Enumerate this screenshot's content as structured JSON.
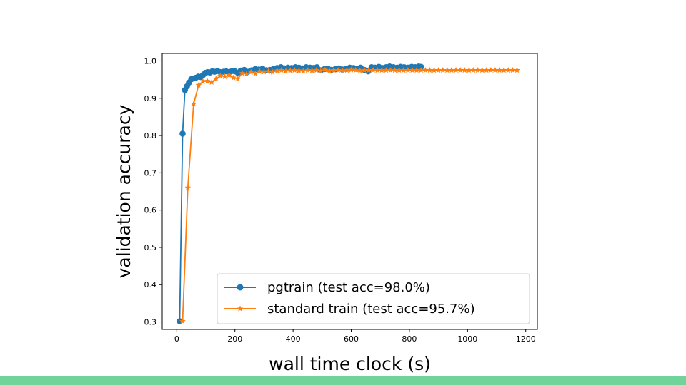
{
  "chart_data": {
    "type": "line",
    "title": "",
    "xlabel": "wall time clock (s)",
    "ylabel": "validation accuracy",
    "xlim": [
      -50,
      1240
    ],
    "ylim": [
      0.28,
      1.02
    ],
    "xticks": [
      0,
      200,
      400,
      600,
      800,
      1000,
      1200
    ],
    "yticks": [
      0.3,
      0.4,
      0.5,
      0.6,
      0.7,
      0.8,
      0.9,
      1.0
    ],
    "grid": false,
    "legend_position": "lower-right",
    "series": [
      {
        "name": "pgtrain (test acc=98.0%)",
        "color": "#1f77b4",
        "marker": "circle",
        "x": [
          10,
          20,
          28,
          35,
          42,
          50,
          58,
          66,
          74,
          82,
          90,
          98,
          106,
          114,
          122,
          130,
          140,
          150,
          160,
          170,
          180,
          190,
          200,
          210,
          220,
          232,
          245,
          258,
          270,
          282,
          295,
          308,
          320,
          332,
          345,
          358,
          370,
          382,
          395,
          408,
          420,
          432,
          445,
          458,
          470,
          482,
          495,
          508,
          520,
          532,
          545,
          558,
          570,
          582,
          595,
          608,
          620,
          632,
          645,
          658,
          670,
          682,
          695,
          708,
          720,
          732,
          745,
          758,
          770,
          782,
          795,
          808,
          820,
          832,
          840
        ],
        "y": [
          0.302,
          0.805,
          0.922,
          0.932,
          0.942,
          0.951,
          0.953,
          0.955,
          0.958,
          0.957,
          0.962,
          0.968,
          0.97,
          0.969,
          0.972,
          0.971,
          0.973,
          0.97,
          0.971,
          0.972,
          0.97,
          0.973,
          0.972,
          0.968,
          0.974,
          0.976,
          0.971,
          0.975,
          0.978,
          0.977,
          0.979,
          0.975,
          0.976,
          0.978,
          0.981,
          0.983,
          0.98,
          0.982,
          0.981,
          0.983,
          0.982,
          0.98,
          0.983,
          0.982,
          0.981,
          0.983,
          0.975,
          0.978,
          0.979,
          0.976,
          0.978,
          0.98,
          0.977,
          0.979,
          0.982,
          0.981,
          0.979,
          0.982,
          0.976,
          0.972,
          0.983,
          0.982,
          0.984,
          0.981,
          0.983,
          0.985,
          0.983,
          0.982,
          0.984,
          0.983,
          0.982,
          0.984,
          0.983,
          0.985,
          0.984
        ]
      },
      {
        "name": "standard train (test acc=95.7%)",
        "color": "#ff7f0e",
        "marker": "star",
        "x": [
          20,
          38,
          58,
          75,
          90,
          105,
          120,
          135,
          150,
          165,
          180,
          195,
          210,
          225,
          240,
          255,
          270,
          285,
          300,
          315,
          330,
          345,
          360,
          375,
          390,
          405,
          420,
          435,
          450,
          465,
          480,
          495,
          510,
          525,
          540,
          555,
          570,
          585,
          600,
          615,
          630,
          645,
          660,
          675,
          690,
          705,
          720,
          735,
          750,
          765,
          780,
          795,
          810,
          825,
          840,
          855,
          870,
          885,
          900,
          915,
          930,
          945,
          960,
          975,
          990,
          1005,
          1020,
          1035,
          1050,
          1065,
          1080,
          1095,
          1110,
          1125,
          1140,
          1155,
          1170
        ],
        "y": [
          0.302,
          0.66,
          0.885,
          0.935,
          0.945,
          0.946,
          0.943,
          0.952,
          0.96,
          0.958,
          0.962,
          0.955,
          0.952,
          0.967,
          0.965,
          0.97,
          0.966,
          0.972,
          0.971,
          0.972,
          0.97,
          0.974,
          0.975,
          0.973,
          0.974,
          0.975,
          0.974,
          0.973,
          0.975,
          0.974,
          0.975,
          0.973,
          0.976,
          0.974,
          0.975,
          0.975,
          0.974,
          0.975,
          0.976,
          0.975,
          0.974,
          0.975,
          0.975,
          0.975,
          0.975,
          0.975,
          0.975,
          0.975,
          0.975,
          0.975,
          0.975,
          0.975,
          0.975,
          0.975,
          0.975,
          0.975,
          0.975,
          0.975,
          0.975,
          0.975,
          0.975,
          0.975,
          0.975,
          0.975,
          0.975,
          0.975,
          0.975,
          0.975,
          0.975,
          0.975,
          0.975,
          0.975,
          0.975,
          0.975,
          0.975,
          0.975,
          0.975
        ]
      }
    ]
  }
}
